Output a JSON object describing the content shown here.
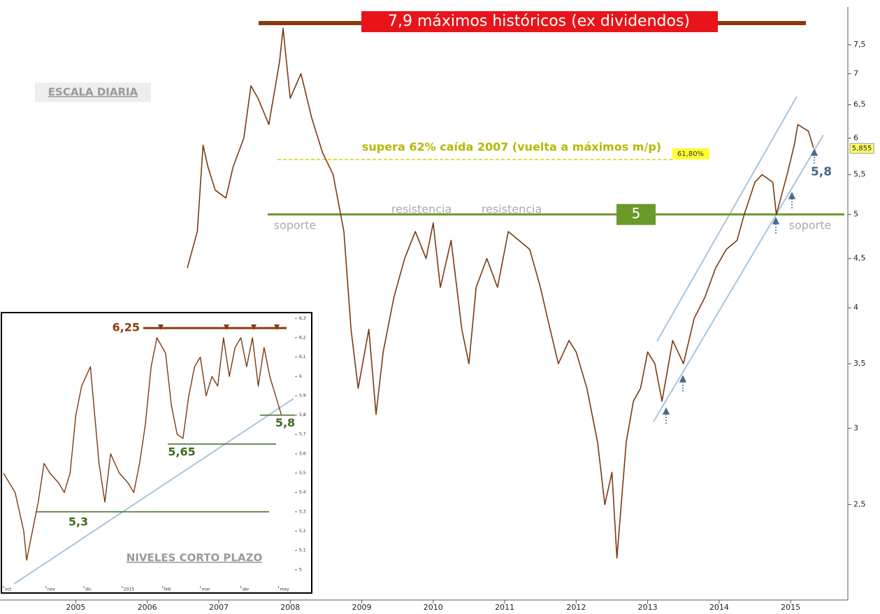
{
  "chart_data": [
    {
      "type": "line",
      "scale": "log",
      "title": "7,9 máximos históricos (ex dividendos)",
      "annotations": [
        "ESCALA DIARIA",
        "supera 62% caída 2007 (vuelta a máximos m/p)",
        "61,80%",
        "resistencia",
        "resistencia",
        "soporte",
        "soporte",
        "5,8"
      ],
      "x": [
        2006.56,
        2006.7,
        2006.78,
        2006.85,
        2006.95,
        2007.1,
        2007.2,
        2007.35,
        2007.45,
        2007.55,
        2007.7,
        2007.85,
        2007.9,
        2008.0,
        2008.15,
        2008.3,
        2008.45,
        2008.6,
        2008.75,
        2008.85,
        2008.95,
        2009.1,
        2009.2,
        2009.3,
        2009.45,
        2009.6,
        2009.75,
        2009.9,
        2010.0,
        2010.1,
        2010.25,
        2010.4,
        2010.5,
        2010.6,
        2010.75,
        2010.9,
        2011.05,
        2011.2,
        2011.35,
        2011.5,
        2011.6,
        2011.75,
        2011.9,
        2012.0,
        2012.15,
        2012.3,
        2012.4,
        2012.5,
        2012.57,
        2012.7,
        2012.8,
        2012.9,
        2013.0,
        2013.1,
        2013.2,
        2013.35,
        2013.5,
        2013.65,
        2013.8,
        2013.95,
        2014.1,
        2014.25,
        2014.35,
        2014.5,
        2014.6,
        2014.75,
        2014.8,
        2014.95,
        2015.05,
        2015.1,
        2015.25,
        2015.32
      ],
      "series": [
        {
          "color": "#7a3a12",
          "values": [
            4.4,
            4.8,
            5.9,
            5.6,
            5.3,
            5.2,
            5.6,
            6.0,
            6.8,
            6.6,
            6.2,
            7.2,
            7.8,
            6.6,
            7.0,
            6.3,
            5.8,
            5.5,
            4.8,
            3.8,
            3.3,
            3.8,
            3.1,
            3.6,
            4.1,
            4.5,
            4.8,
            4.5,
            4.9,
            4.2,
            4.7,
            3.8,
            3.5,
            4.2,
            4.5,
            4.2,
            4.8,
            4.7,
            4.6,
            4.2,
            3.9,
            3.5,
            3.7,
            3.6,
            3.3,
            2.9,
            2.5,
            2.7,
            2.2,
            2.9,
            3.2,
            3.3,
            3.6,
            3.5,
            3.2,
            3.7,
            3.5,
            3.9,
            4.1,
            4.4,
            4.6,
            4.7,
            5.0,
            5.4,
            5.5,
            5.4,
            5.0,
            5.5,
            5.9,
            6.2,
            6.1,
            5.86
          ]
        }
      ],
      "hlines": [
        {
          "value": 7.9,
          "color": "#8b3a0f"
        },
        {
          "value": 5.7,
          "color": "#d6d600"
        },
        {
          "value": 5,
          "color": "#6a9a2a"
        }
      ],
      "last_price": 5.855,
      "last_price_label": "5,855",
      "xlim": [
        2003.94,
        2015.8
      ],
      "xticks": [
        2005,
        2006,
        2007,
        2008,
        2009,
        2010,
        2011,
        2012,
        2013,
        2014,
        2015
      ],
      "ylim": [
        2,
        8.1
      ],
      "yticks": [
        {
          "value": 2.5,
          "label": "2,5"
        },
        3,
        {
          "value": 3.5,
          "label": "3,5"
        },
        4,
        {
          "value": 4.5,
          "label": "4,5"
        },
        5,
        {
          "value": 5.5,
          "label": "5,5"
        },
        6,
        {
          "value": 6.5,
          "label": "6,5"
        },
        7,
        {
          "value": 7.5,
          "label": "7,5"
        }
      ]
    },
    {
      "type": "line",
      "annotations": [
        "NIVELES CORTO PLAZO"
      ],
      "x": [
        0,
        4,
        7,
        8,
        10,
        12,
        14,
        16,
        19,
        21,
        23,
        25,
        27,
        30,
        33,
        35,
        37,
        40,
        43,
        45,
        47,
        49,
        51,
        53,
        56,
        58,
        60,
        62,
        64,
        66,
        68,
        70,
        72,
        74,
        76,
        78,
        80,
        82,
        84,
        86,
        88,
        90,
        92,
        94,
        96
      ],
      "series": [
        {
          "color": "#7a3a12",
          "values": [
            5.5,
            5.4,
            5.2,
            5.05,
            5.2,
            5.35,
            5.55,
            5.5,
            5.45,
            5.4,
            5.5,
            5.8,
            5.95,
            6.05,
            5.55,
            5.35,
            5.6,
            5.5,
            5.45,
            5.4,
            5.55,
            5.75,
            6.05,
            6.2,
            6.12,
            5.85,
            5.7,
            5.68,
            5.9,
            6.05,
            6.1,
            5.9,
            6.0,
            5.95,
            6.2,
            6.0,
            6.15,
            6.2,
            6.05,
            6.2,
            5.95,
            6.15,
            6.0,
            5.9,
            5.8
          ]
        }
      ],
      "levels": [
        {
          "value": 6.25,
          "label": "6,25"
        },
        {
          "value": 5.65,
          "label": "5,65"
        },
        {
          "value": 5.3,
          "label": "5,3"
        },
        {
          "value": 5.8,
          "label": "5,8"
        }
      ],
      "xlim": [
        0,
        100.2
      ],
      "xticks": [
        {
          "value": 0,
          "label": "oct"
        },
        {
          "value": 14.7,
          "label": "nov"
        },
        {
          "value": 27.8,
          "label": "dic"
        },
        {
          "value": 41,
          "label": "2015"
        },
        {
          "value": 55,
          "label": "feb"
        },
        {
          "value": 68,
          "label": "mar"
        },
        {
          "value": 82,
          "label": "abr"
        },
        {
          "value": 95,
          "label": "may"
        }
      ],
      "ylim": [
        4.88,
        6.33
      ],
      "yticks": [
        5,
        {
          "value": 5.1,
          "label": "5,1"
        },
        {
          "value": 5.2,
          "label": "5,2"
        },
        {
          "value": 5.3,
          "label": "5,3"
        },
        {
          "value": 5.4,
          "label": "5,4"
        },
        {
          "value": 5.5,
          "label": "5,5"
        },
        {
          "value": 5.6,
          "label": "5,6"
        },
        {
          "value": 5.7,
          "label": "5,7"
        },
        {
          "value": 5.8,
          "label": "5,8"
        },
        {
          "value": 5.9,
          "label": "5,9"
        },
        6,
        {
          "value": 6.1,
          "label": "6,1"
        },
        {
          "value": 6.2,
          "label": "6,2"
        },
        {
          "value": 6.3,
          "label": "6,3"
        }
      ]
    }
  ]
}
